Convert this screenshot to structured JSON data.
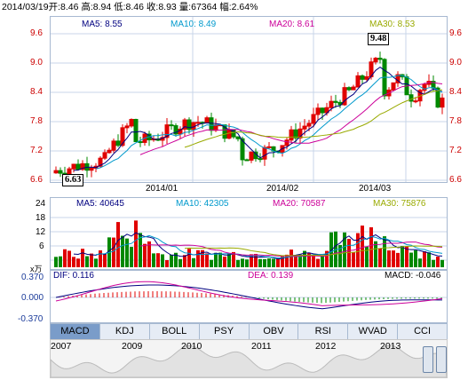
{
  "header": {
    "date": "2014/03/19",
    "open_label": "开:",
    "open": "8.46",
    "high_label": "高:",
    "high": "8.94",
    "low_label": "低:",
    "low": "8.46",
    "close_label": "收:",
    "close": "8.93",
    "volume_label": "量:",
    "volume": "67364",
    "change_label": "幅:",
    "change": "2.64%"
  },
  "price_panel": {
    "ma5": "MA5: 8.55",
    "ma10": "MA10: 8.49",
    "ma20": "MA20: 8.61",
    "ma30": "MA30: 8.53",
    "y_ticks": [
      "9.6",
      "9.0",
      "8.4",
      "7.8",
      "7.2",
      "6.6"
    ],
    "high_callout": "9.48",
    "low_callout": "6.63",
    "dates": [
      "2014/01",
      "2014/02",
      "2014/03"
    ]
  },
  "volume_panel": {
    "ma5": "MA5: 40645",
    "ma10": "MA10: 42305",
    "ma20": "MA20: 70587",
    "ma30": "MA30: 75876",
    "y_ticks": [
      "24",
      "18",
      "12",
      "6"
    ],
    "unit": "x万"
  },
  "macd_panel": {
    "dif": "DIF: 0.116",
    "dea": "DEA: 0.139",
    "macd": "MACD: -0.046",
    "y_ticks": [
      "0.370",
      "0.000",
      "-0.370"
    ]
  },
  "tabs": [
    "MACD",
    "KDJ",
    "BOLL",
    "PSY",
    "OBV",
    "RSI",
    "WVAD",
    "CCI"
  ],
  "active_tab": "MACD",
  "overview_years": [
    "2007",
    "2009",
    "2010",
    "2011",
    "2012",
    "2013"
  ],
  "colors": {
    "up": "#e00000",
    "down": "#008800",
    "ma5": "#000080",
    "ma10": "#0099cc",
    "ma20": "#cc0099",
    "ma30": "#99aa00"
  }
}
